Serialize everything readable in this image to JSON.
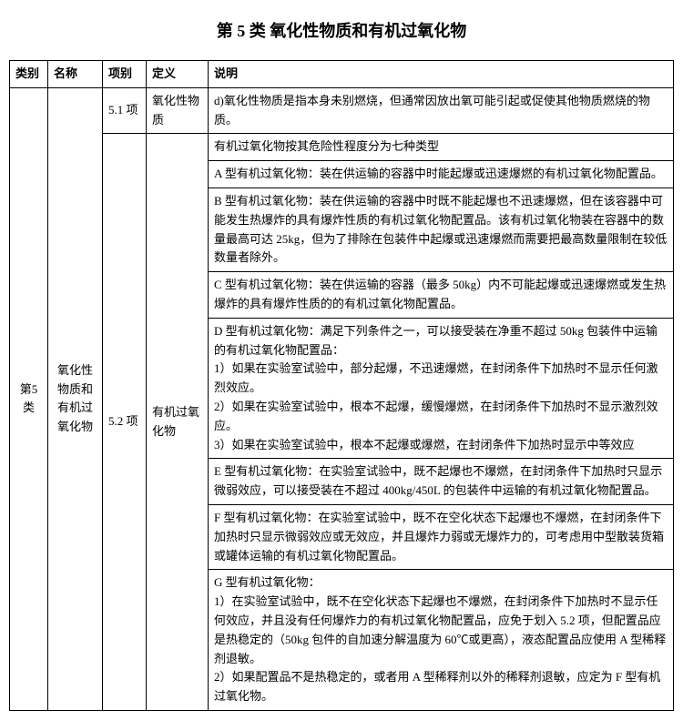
{
  "title": "第 5 类 氧化性物质和有机过氧化物",
  "headers": {
    "category": "类别",
    "name": "名称",
    "item": "项别",
    "definition": "定义",
    "description": "说明"
  },
  "category": "第5类",
  "name": "氧化性物质和有机过氧化物",
  "row51": {
    "item": "5.1 项",
    "definition": "氧化性物质",
    "description": "d)氧化性物质是指本身未别燃烧，但通常因放出氧可能引起或促使其他物质燃烧的物质。"
  },
  "row52": {
    "item": "5.2 项",
    "definition": "有机过氧化物",
    "descs": {
      "d0": "有机过氧化物按其危险性程度分为七种类型",
      "d1": "A 型有机过氧化物：装在供运输的容器中时能起爆或迅速爆燃的有机过氧化物配置品。",
      "d2": "B 型有机过氧化物：装在供运输的容器中时既不能起爆也不迅速爆燃，但在该容器中可能发生热爆炸的具有爆炸性质的有机过氧化物配置品。该有机过氧化物装在容器中的数量最高可达 25kg，但为了排除在包装件中起爆或迅速爆燃而需要把最高数量限制在较低数量者除外。",
      "d3": "C 型有机过氧化物：装在供运输的容器（最多 50kg）内不可能起爆或迅速爆燃或发生热爆炸的具有爆炸性质的的有机过氧化物配置品。",
      "d4": "D 型有机过氧化物：满足下列条件之一，可以接受装在净重不超过 50kg 包装件中运输的有机过氧化物配置品：\n1）如果在实验室试验中，部分起爆，不迅速爆燃，在封闭条件下加热时不显示任何激烈效应。\n2）如果在实验室试验中，根本不起爆，缓慢爆燃，在封闭条件下加热时不显示激烈效应。\n3）如果在实验室试验中，根本不起爆或爆燃，在封闭条件下加热时显示中等效应",
      "d5": "E 型有机过氧化物：在实验室试验中，既不起爆也不爆燃，在封闭条件下加热时只显示微弱效应，可以接受装在不超过 400kg/450L 的包装件中运输的有机过氧化物配置品。",
      "d6": "F 型有机过氧化物：在实验室试验中，既不在空化状态下起爆也不爆燃，在封闭条件下加热时只显示微弱效应或无效应，并且爆炸力弱或无爆炸力的，可考虑用中型散装货箱或罐体运输的有机过氧化物配置品。",
      "d7": "G 型有机过氧化物：\n1）在实验室试验中，既不在空化状态下起爆也不爆燃，在封闭条件下加热时不显示任何效应，并且没有任何爆炸力的有机过氧化物配置品，应免于划入 5.2 项，但配置品应是热稳定的（50kg 包件的自加速分解温度为 60℃或更高），液态配置品应使用 A 型稀释剂退敏。\n2）如果配置品不是热稳定的，或者用 A 型稀释剂以外的稀释剂退敏，应定为 F 型有机过氧化物。"
    }
  }
}
